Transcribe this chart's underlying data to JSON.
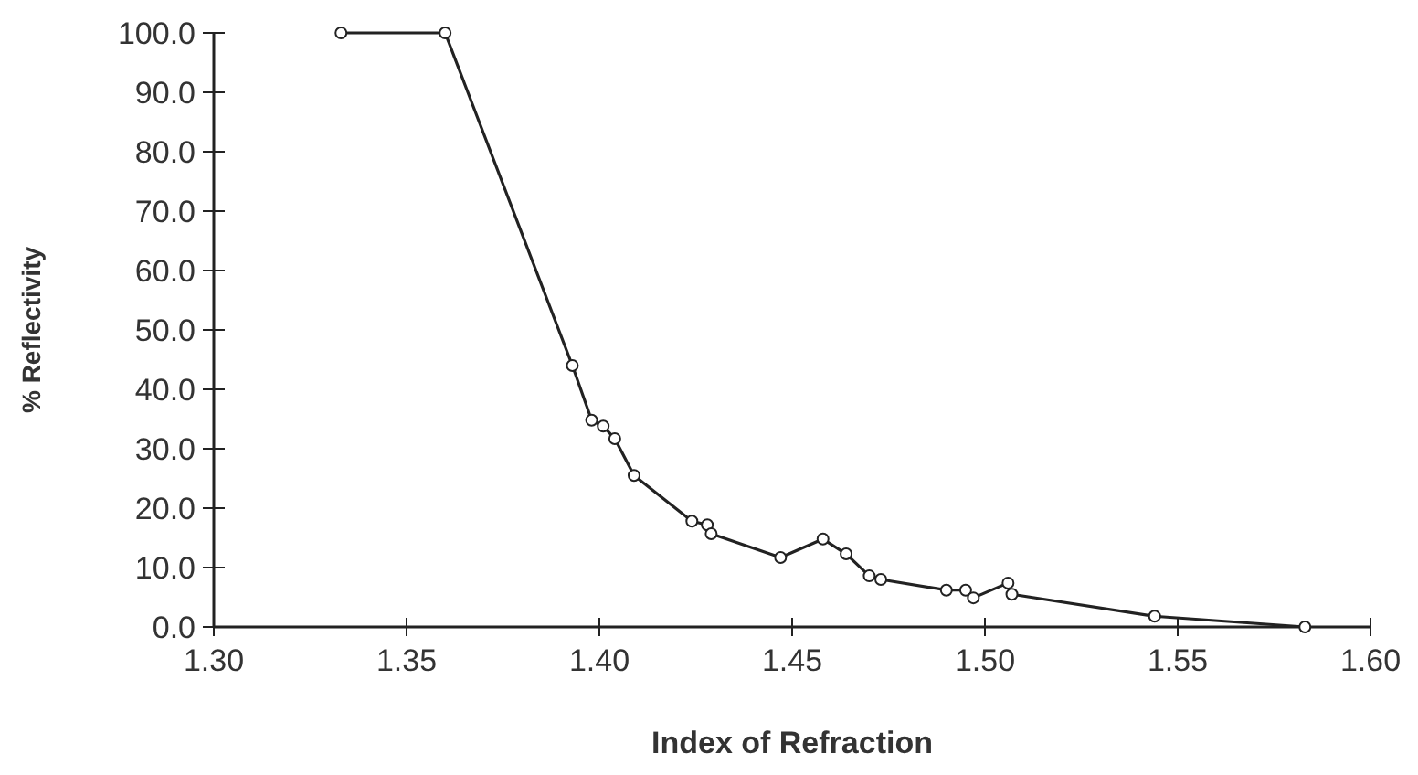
{
  "chart_data": {
    "type": "line",
    "xlabel": "Index of Refraction",
    "ylabel": "% Reflectivity",
    "x": [
      1.333,
      1.36,
      1.393,
      1.398,
      1.401,
      1.404,
      1.409,
      1.424,
      1.428,
      1.429,
      1.447,
      1.458,
      1.464,
      1.47,
      1.473,
      1.49,
      1.495,
      1.497,
      1.506,
      1.507,
      1.544,
      1.583
    ],
    "series": [
      {
        "color": "#222222",
        "values": [
          100,
          100,
          44,
          34.8,
          33.8,
          31.7,
          25.5,
          17.8,
          17.2,
          15.7,
          11.7,
          14.8,
          12.3,
          8.6,
          8,
          6.2,
          6.2,
          4.9,
          7.4,
          5.5,
          1.8,
          0
        ]
      }
    ],
    "xlim": [
      1.3,
      1.6
    ],
    "xticks": [
      {
        "value": 1.3,
        "label": "1.30"
      },
      {
        "value": 1.35,
        "label": "1.35"
      },
      {
        "value": 1.4,
        "label": "1.40"
      },
      {
        "value": 1.45,
        "label": "1.45"
      },
      {
        "value": 1.5,
        "label": "1.50"
      },
      {
        "value": 1.55,
        "label": "1.55"
      },
      {
        "value": 1.6,
        "label": "1.60"
      }
    ],
    "ylim": [
      0,
      100
    ],
    "yticks": [
      {
        "value": 0,
        "label": "0.0"
      },
      {
        "value": 10,
        "label": "10.0"
      },
      {
        "value": 20,
        "label": "20.0"
      },
      {
        "value": 30,
        "label": "30.0"
      },
      {
        "value": 40,
        "label": "40.0"
      },
      {
        "value": 50,
        "label": "50.0"
      },
      {
        "value": 60,
        "label": "60.0"
      },
      {
        "value": 70,
        "label": "70.0"
      },
      {
        "value": 80,
        "label": "80.0"
      },
      {
        "value": 90,
        "label": "90.0"
      },
      {
        "value": 100,
        "label": "100.0"
      }
    ],
    "grid": false,
    "marker": "circle",
    "line_style": "solid"
  }
}
